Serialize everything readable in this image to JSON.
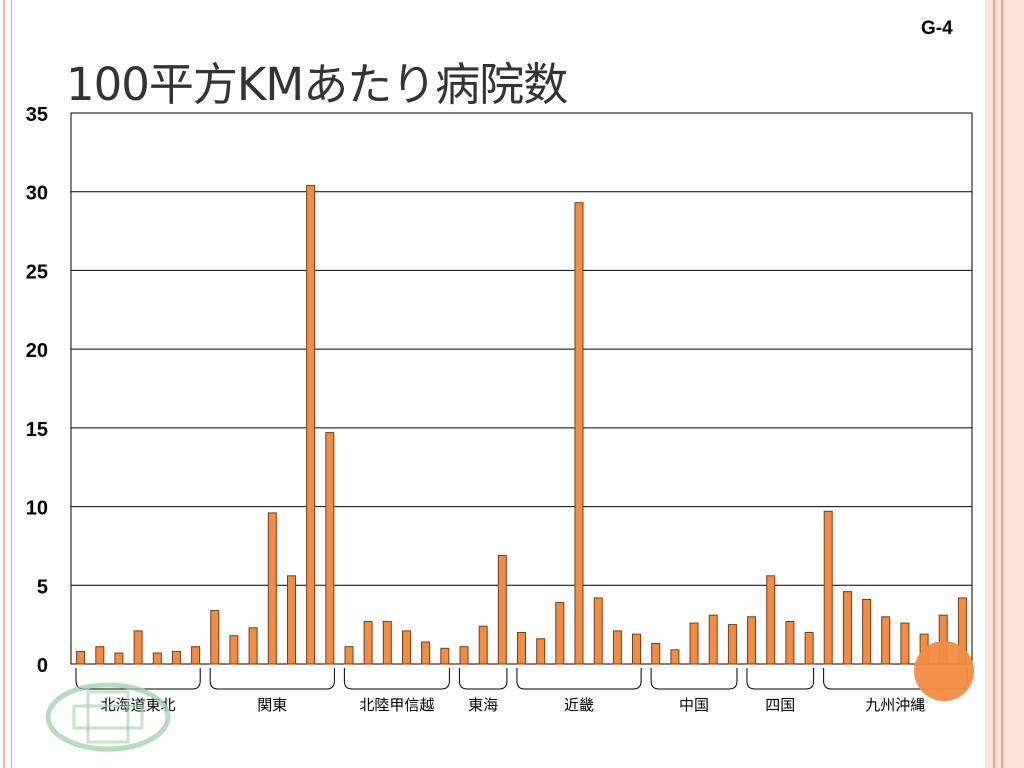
{
  "slide": {
    "id": "G-4",
    "title": "100平方KMあたり病院数"
  },
  "colors": {
    "bar_fill": "#f28b43",
    "bar_stroke": "#7a3c12",
    "grid": "#000000",
    "accent": "#f28b43",
    "frame": "#f2b8a4"
  },
  "chart_data": {
    "type": "bar",
    "title": "100平方KMあたり病院数",
    "xlabel": "",
    "ylabel": "",
    "ylim": [
      0,
      35
    ],
    "yticks": [
      0,
      5,
      10,
      15,
      20,
      25,
      30,
      35
    ],
    "grid": true,
    "legend": "none",
    "values": [
      0.8,
      1.1,
      0.7,
      2.1,
      0.7,
      0.8,
      1.1,
      3.4,
      1.8,
      2.3,
      9.6,
      5.6,
      30.4,
      14.7,
      1.1,
      2.7,
      2.7,
      2.1,
      1.4,
      1.0,
      1.1,
      2.4,
      6.9,
      2.0,
      1.6,
      3.9,
      29.3,
      4.2,
      2.1,
      1.9,
      1.3,
      0.9,
      2.6,
      3.1,
      2.5,
      3.0,
      5.6,
      2.7,
      2.0,
      9.7,
      4.6,
      4.1,
      3.0,
      2.6,
      1.9,
      3.1,
      4.2
    ],
    "groups": [
      {
        "label": "北海道東北",
        "count": 7
      },
      {
        "label": "関東",
        "count": 7
      },
      {
        "label": "北陸甲信越",
        "count": 6
      },
      {
        "label": "東海",
        "count": 3
      },
      {
        "label": "近畿",
        "count": 7
      },
      {
        "label": "中国",
        "count": 5
      },
      {
        "label": "四国",
        "count": 4
      },
      {
        "label": "九州沖縄",
        "count": 8
      }
    ]
  }
}
